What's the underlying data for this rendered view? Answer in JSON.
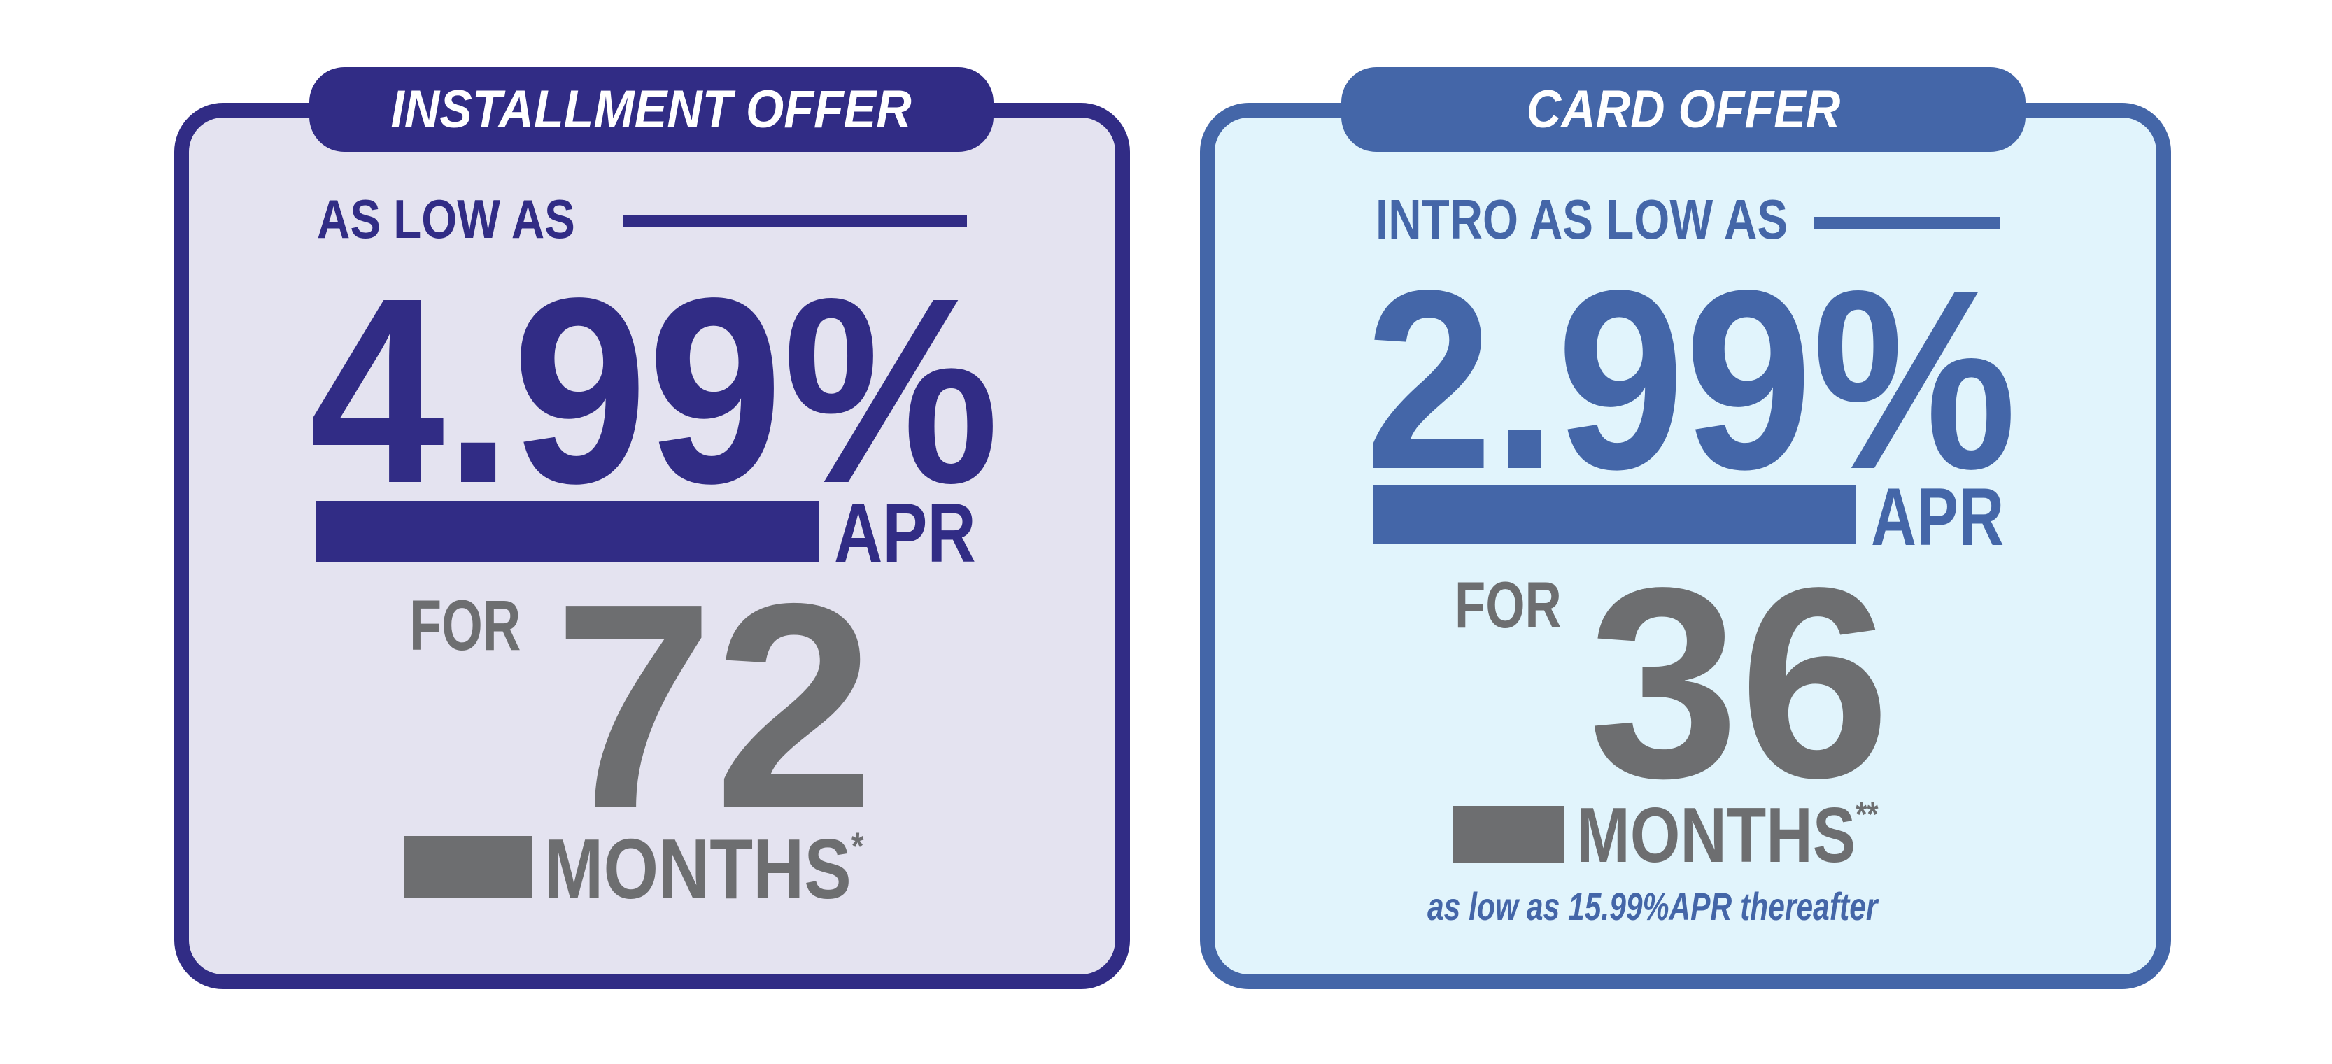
{
  "colors": {
    "installment": "#312c85",
    "installment_bg": "#e4e3f0",
    "card": "#4466a8",
    "card_bg": "#e1f4fc",
    "gray": "#6d6e70"
  },
  "installment_offer": {
    "title": "INSTALLMENT OFFER",
    "lead": "AS LOW AS",
    "rate": "4.99%",
    "rate_unit": "APR",
    "term_prefix": "FOR",
    "term_value": "72",
    "term_unit": "MONTHS",
    "footnote_mark": "*"
  },
  "card_offer": {
    "title": "CARD OFFER",
    "lead": "INTRO AS LOW AS",
    "rate": "2.99%",
    "rate_unit": "APR",
    "term_prefix": "FOR",
    "term_value": "36",
    "term_unit": "MONTHS",
    "footnote_mark": "**",
    "note": "as low as 15.99%APR thereafter"
  }
}
